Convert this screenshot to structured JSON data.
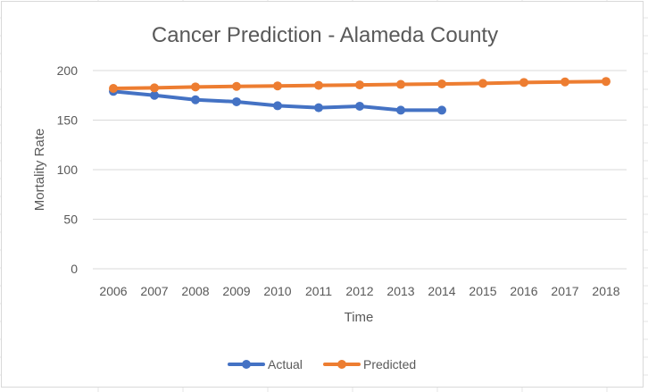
{
  "colors": {
    "actual": "#4472C4",
    "predicted": "#ED7D31",
    "gridline": "#d9d9d9",
    "text": "#595959"
  },
  "chart_data": {
    "type": "line",
    "title": "Cancer Prediction - Alameda County",
    "xlabel": "Time",
    "ylabel": "Mortality Rate",
    "categories": [
      "2006",
      "2007",
      "2008",
      "2009",
      "2010",
      "2011",
      "2012",
      "2013",
      "2014",
      "2015",
      "2016",
      "2017",
      "2018"
    ],
    "ylim": [
      0,
      200
    ],
    "yticks": [
      "0",
      "50",
      "100",
      "150",
      "200"
    ],
    "grid": true,
    "legend_position": "bottom",
    "series": [
      {
        "name": "Actual",
        "color": "#4472C4",
        "values": [
          179,
          175,
          170.5,
          168.5,
          164.5,
          162.5,
          164,
          160,
          160,
          null,
          null,
          null,
          null
        ]
      },
      {
        "name": "Predicted",
        "color": "#ED7D31",
        "values": [
          182,
          182.5,
          183.5,
          184,
          184.5,
          185,
          185.5,
          186,
          186.5,
          187,
          188,
          188.5,
          189
        ]
      }
    ]
  }
}
